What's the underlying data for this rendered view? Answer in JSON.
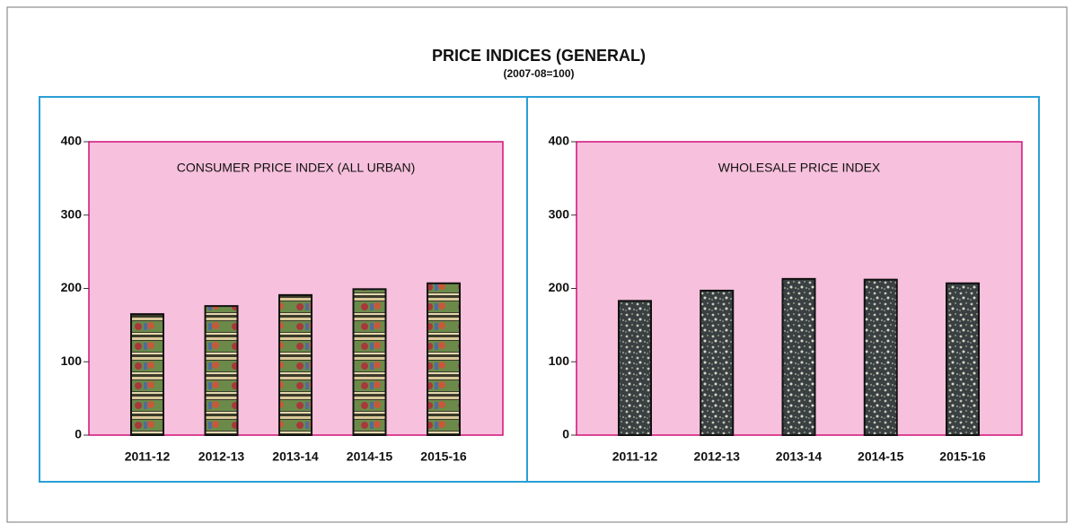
{
  "header": {
    "title": "PRICE INDICES (GENERAL)",
    "subtitle": "(2007-08=100)"
  },
  "chart_data": [
    {
      "type": "bar",
      "title": "CONSUMER PRICE INDEX (ALL URBAN)",
      "categories": [
        "2011-12",
        "2012-13",
        "2013-14",
        "2014-15",
        "2015-16"
      ],
      "values": [
        165,
        176,
        191,
        199,
        207
      ],
      "ylim": [
        0,
        400
      ],
      "yticks": [
        0,
        100,
        200,
        300,
        400
      ]
    },
    {
      "type": "bar",
      "title": "WHOLESALE PRICE INDEX",
      "categories": [
        "2011-12",
        "2012-13",
        "2013-14",
        "2014-15",
        "2015-16"
      ],
      "values": [
        183,
        197,
        213,
        212,
        207
      ],
      "ylim": [
        0,
        400
      ],
      "yticks": [
        0,
        100,
        200,
        300,
        400
      ]
    }
  ]
}
